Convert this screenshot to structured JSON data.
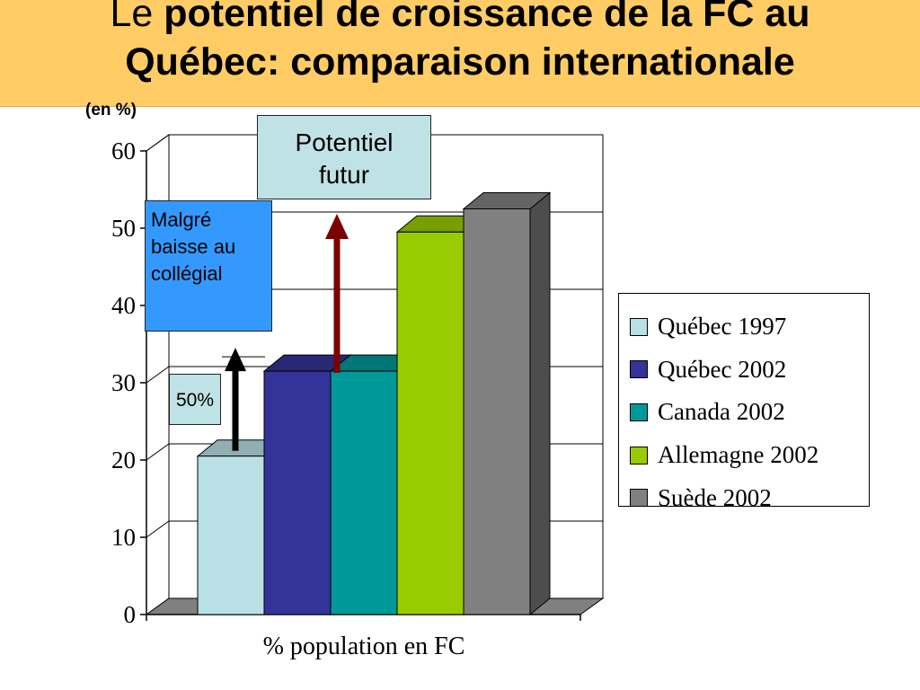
{
  "slide": {
    "title_prefix": "Le",
    "title_strong_line1": "potentiel de croissance de la FC au",
    "title_strong_line2": "Québec: comparaison internationale"
  },
  "unit_label": "(en %)",
  "callouts": {
    "potential": [
      "Potentiel",
      "futur"
    ],
    "malgre": [
      "Malgré",
      "baisse au",
      "collégial"
    ],
    "fifty": "50%"
  },
  "colors": {
    "title_band": "#ffcc66",
    "arrow_potential": "#7b0000",
    "arrow_fifty": "#000000"
  },
  "chart_data": {
    "type": "bar",
    "style": "3d",
    "title": "",
    "xlabel": "% population en FC",
    "ylabel": "",
    "ylim": [
      0,
      60
    ],
    "yticks": [
      0,
      10,
      20,
      30,
      40,
      50,
      60
    ],
    "grid": true,
    "legend_position": "right",
    "series": [
      {
        "name": "Québec 1997",
        "values": [
          20.5
        ],
        "color": "#b9e0e4"
      },
      {
        "name": "Québec 2002",
        "values": [
          31.5
        ],
        "color": "#333399"
      },
      {
        "name": "Canada 2002",
        "values": [
          31.5
        ],
        "color": "#009999"
      },
      {
        "name": "Allemagne 2002",
        "values": [
          49.5
        ],
        "color": "#99cc00"
      },
      {
        "name": "Suède 2002",
        "values": [
          52.5
        ],
        "color": "#808080"
      }
    ]
  }
}
